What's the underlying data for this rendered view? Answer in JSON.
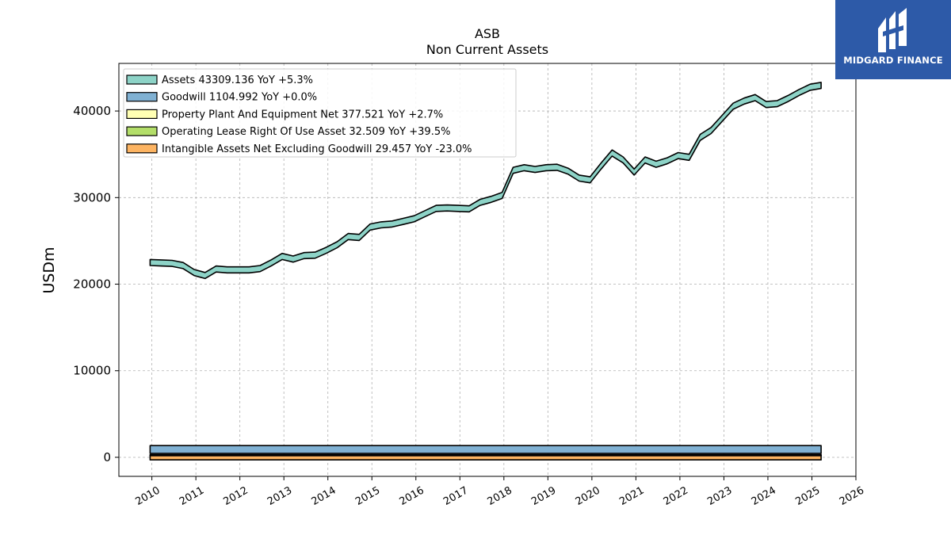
{
  "brand": {
    "name": "MIDGARD FINANCE",
    "icon": "midgard-logo-icon",
    "color": "#2d5aa8"
  },
  "chart_data": {
    "type": "area",
    "title": "ASB",
    "subtitle": "Non Current  Assets",
    "xlabel": "",
    "ylabel": "USDm",
    "xlim": [
      2009.25,
      2026.0
    ],
    "ylim": [
      -2200,
      45500
    ],
    "grid": true,
    "legend_position": "top-left",
    "x_ticks": [
      2010,
      2011,
      2012,
      2013,
      2014,
      2015,
      2016,
      2017,
      2018,
      2019,
      2020,
      2021,
      2022,
      2023,
      2024,
      2025,
      2026
    ],
    "y_ticks": [
      0,
      10000,
      20000,
      30000,
      40000
    ],
    "x": [
      2009.96,
      2010.21,
      2010.46,
      2010.71,
      2010.96,
      2011.21,
      2011.46,
      2011.71,
      2011.96,
      2012.21,
      2012.46,
      2012.71,
      2012.96,
      2013.21,
      2013.46,
      2013.71,
      2013.96,
      2014.21,
      2014.46,
      2014.71,
      2014.96,
      2015.21,
      2015.46,
      2015.71,
      2015.96,
      2016.21,
      2016.46,
      2016.71,
      2016.96,
      2017.21,
      2017.46,
      2017.71,
      2017.96,
      2018.21,
      2018.46,
      2018.71,
      2018.96,
      2019.21,
      2019.46,
      2019.71,
      2019.96,
      2020.21,
      2020.46,
      2020.71,
      2020.96,
      2021.21,
      2021.46,
      2021.71,
      2021.96,
      2022.21,
      2022.46,
      2022.71,
      2022.96,
      2023.21,
      2023.46,
      2023.71,
      2023.96,
      2024.21,
      2024.46,
      2024.71,
      2024.96,
      2025.21
    ],
    "series": [
      {
        "name": "Assets",
        "legend_label": "Assets  43309.136 YoY +5.3%",
        "color": "#8dd3c7",
        "values": [
          22850,
          22800,
          22750,
          22500,
          21700,
          21350,
          22100,
          22000,
          22000,
          22000,
          22150,
          22800,
          23550,
          23250,
          23650,
          23700,
          24250,
          24900,
          25850,
          25750,
          26950,
          27200,
          27300,
          27600,
          27900,
          28500,
          29100,
          29150,
          29100,
          29050,
          29800,
          30150,
          30600,
          33500,
          33800,
          33600,
          33800,
          33850,
          33400,
          32600,
          32400,
          34000,
          35500,
          34700,
          33300,
          34700,
          34200,
          34600,
          35200,
          35000,
          37300,
          38100,
          39500,
          40900,
          41500,
          41900,
          41100,
          41200,
          41800,
          42500,
          43100,
          43309
        ]
      },
      {
        "name": "Goodwill",
        "legend_label": "Goodwill  1104.992 YoY +0.0%",
        "color": "#80b1d3",
        "values": [
          1105,
          1105,
          1105,
          1105,
          1105,
          1105,
          1105,
          1105,
          1105,
          1105,
          1105,
          1105,
          1105,
          1105,
          1105,
          1105,
          1105,
          1105,
          1105,
          1105,
          1105,
          1105,
          1105,
          1105,
          1105,
          1105,
          1105,
          1105,
          1105,
          1105,
          1105,
          1105,
          1105,
          1105,
          1105,
          1105,
          1105,
          1105,
          1105,
          1105,
          1105,
          1105,
          1105,
          1105,
          1105,
          1105,
          1105,
          1105,
          1105,
          1105,
          1105,
          1105,
          1105,
          1105,
          1105,
          1105,
          1105,
          1105,
          1105,
          1105,
          1105,
          1105
        ]
      },
      {
        "name": "Property Plant And Equipment Net",
        "legend_label": "Property Plant And Equipment Net  377.521 YoY +2.7%",
        "color": "#ffffb3",
        "values": [
          140,
          140,
          145,
          150,
          150,
          150,
          155,
          160,
          160,
          165,
          170,
          175,
          180,
          185,
          190,
          195,
          200,
          205,
          210,
          215,
          220,
          230,
          240,
          250,
          260,
          270,
          280,
          290,
          300,
          300,
          305,
          305,
          310,
          320,
          330,
          340,
          345,
          350,
          355,
          360,
          360,
          365,
          365,
          365,
          365,
          365,
          365,
          365,
          365,
          365,
          365,
          365,
          365,
          365,
          365,
          366,
          367,
          368,
          370,
          372,
          375,
          378
        ]
      },
      {
        "name": "Operating Lease Right Of Use Asset",
        "legend_label": "Operating Lease Right Of Use Asset  32.509 YoY +39.5%",
        "color": "#b3de69",
        "values": [
          0,
          0,
          0,
          0,
          0,
          0,
          0,
          0,
          0,
          0,
          0,
          0,
          0,
          0,
          0,
          0,
          0,
          0,
          0,
          0,
          0,
          0,
          0,
          0,
          0,
          0,
          0,
          0,
          0,
          0,
          0,
          0,
          0,
          0,
          0,
          0,
          0,
          0,
          0,
          0,
          25,
          25,
          24,
          24,
          23,
          23,
          23,
          23,
          23,
          23,
          23,
          23,
          23,
          23,
          23,
          23,
          23,
          23,
          26,
          28,
          30,
          33
        ]
      },
      {
        "name": "Intangible Assets Net Excluding Goodwill",
        "legend_label": "Intangible Assets Net Excluding Goodwill  29.457 YoY -23.0%",
        "color": "#fdb462",
        "values": [
          -200,
          -200,
          -200,
          -205,
          -210,
          -215,
          -230,
          -230,
          -235,
          -235,
          -235,
          -235,
          -235,
          -240,
          -240,
          -240,
          -245,
          -245,
          -245,
          -250,
          -250,
          -250,
          -250,
          -250,
          -300,
          -300,
          -300,
          -300,
          -300,
          -300,
          -300,
          -300,
          -300,
          -230,
          -220,
          -210,
          -200,
          -190,
          -180,
          -170,
          -140,
          -130,
          -120,
          -110,
          -100,
          -95,
          -90,
          -85,
          -80,
          -75,
          -70,
          -65,
          -60,
          -55,
          -50,
          -45,
          -40,
          -38,
          -36,
          -34,
          -32,
          29
        ]
      }
    ]
  }
}
